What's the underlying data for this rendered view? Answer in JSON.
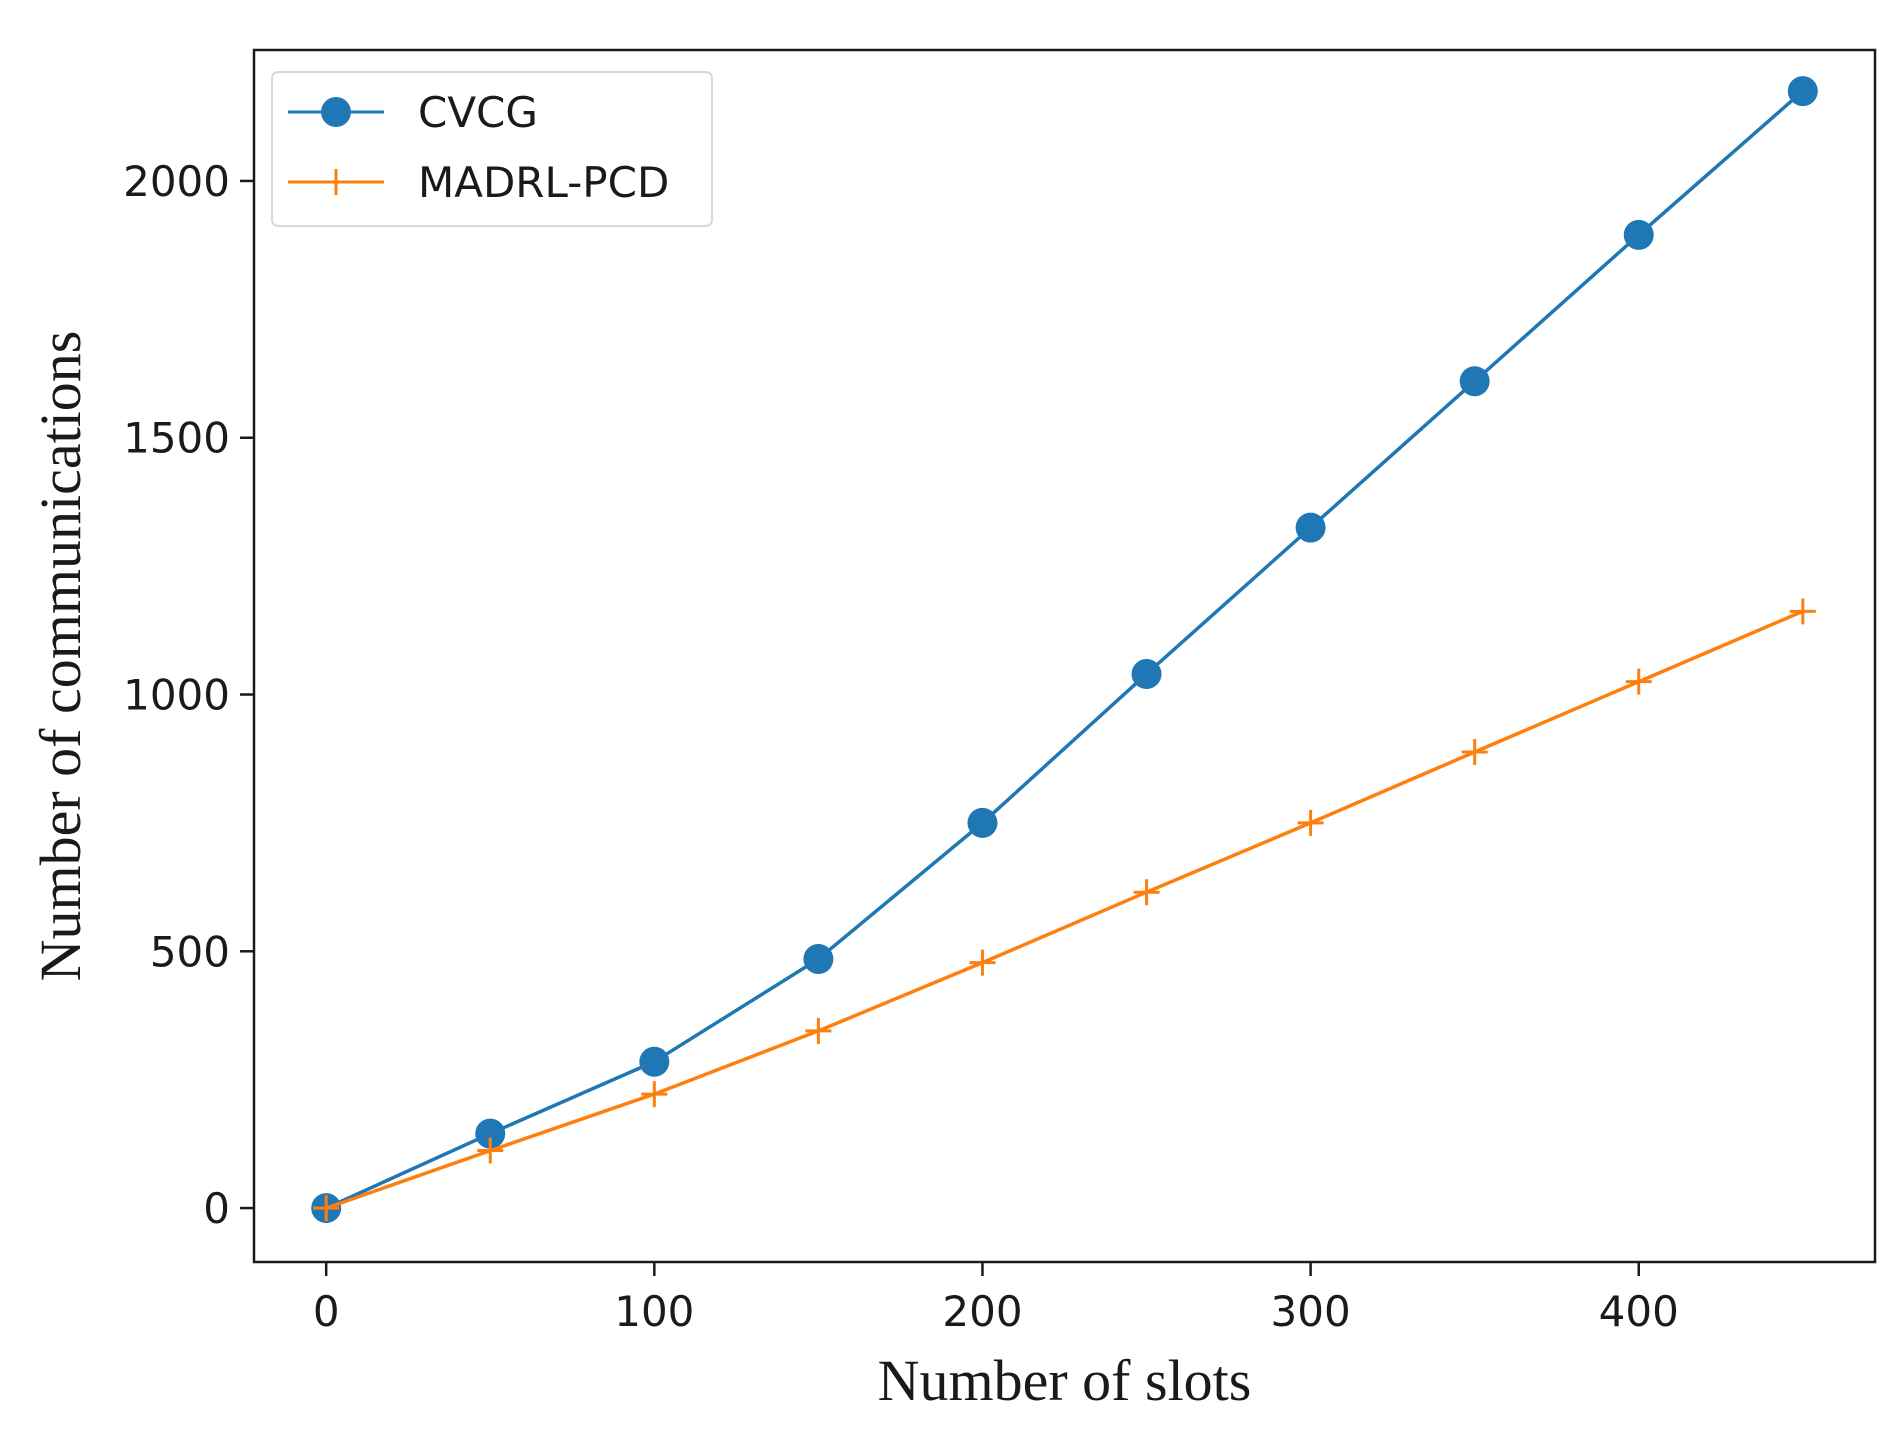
{
  "chart_data": {
    "type": "line",
    "title": "",
    "xlabel": "Number of slots",
    "ylabel": "Number of communications",
    "xlim": [
      -22,
      472
    ],
    "ylim": [
      -105,
      2255
    ],
    "xticks": [
      0,
      100,
      200,
      300,
      400
    ],
    "yticks": [
      0,
      500,
      1000,
      1500,
      2000
    ],
    "grid": false,
    "legend_position": "top-left",
    "x": [
      0,
      50,
      100,
      150,
      200,
      250,
      300,
      350,
      400,
      450
    ],
    "series": [
      {
        "name": "CVCG",
        "color": "#1f77b4",
        "marker": "circle",
        "values": [
          0,
          145,
          285,
          485,
          750,
          1040,
          1325,
          1610,
          1895,
          2175
        ]
      },
      {
        "name": "MADRL-PCD",
        "color": "#ff7f0e",
        "marker": "plus",
        "values": [
          0,
          112,
          222,
          345,
          478,
          615,
          750,
          888,
          1025,
          1162
        ]
      }
    ]
  }
}
